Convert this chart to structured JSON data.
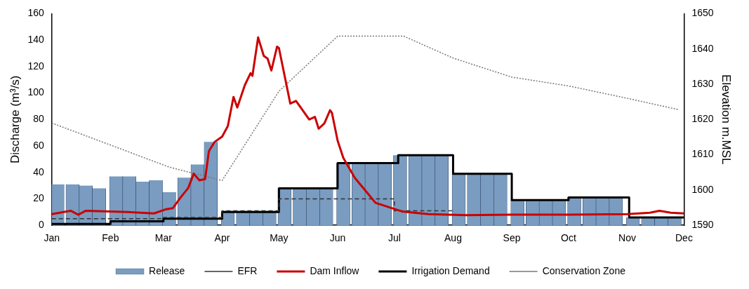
{
  "chart_data": {
    "type": "line",
    "ylabel": "Discharge (m³/s)",
    "y2label": "Elevation m.MSL",
    "xlim": [
      "--01-01",
      "--12-01"
    ],
    "xticks": [
      {
        "value": "--01-01",
        "label": "Jan"
      },
      {
        "value": "--02-01",
        "label": "Feb"
      },
      {
        "value": "--03-01",
        "label": "Mar"
      },
      {
        "value": "--04-01",
        "label": "Apr"
      },
      {
        "value": "--05-01",
        "label": "May"
      },
      {
        "value": "--06-01",
        "label": "Jun"
      },
      {
        "value": "--07-01",
        "label": "Jul"
      },
      {
        "value": "--08-01",
        "label": "Aug"
      },
      {
        "value": "--09-01",
        "label": "Sep"
      },
      {
        "value": "--10-01",
        "label": "Oct"
      },
      {
        "value": "--11-01",
        "label": "Nov"
      },
      {
        "value": "--12-01",
        "label": "Dec"
      }
    ],
    "ylim": [
      0,
      160
    ],
    "yticks": [
      0,
      20,
      40,
      60,
      80,
      100,
      120,
      140,
      160
    ],
    "y2lim": [
      1590,
      1650
    ],
    "y2ticks": [
      1590,
      1600,
      1610,
      1620,
      1630,
      1640,
      1650
    ],
    "legend": "bottom",
    "marker": "none",
    "series": [
      {
        "name": "Release",
        "type": "bar",
        "color": "#7a9cc0",
        "x": [
          "--01-04",
          "--01-12",
          "--01-19",
          "--01-26",
          "--02-04",
          "--02-11",
          "--02-18",
          "--02-25",
          "--03-04",
          "--03-12",
          "--03-19",
          "--03-26",
          "--04-04",
          "--04-12",
          "--04-19",
          "--04-26",
          "--05-04",
          "--05-12",
          "--05-19",
          "--05-26",
          "--06-04",
          "--06-12",
          "--06-19",
          "--06-26",
          "--07-04",
          "--07-12",
          "--07-19",
          "--07-26",
          "--08-04",
          "--08-12",
          "--08-19",
          "--08-26",
          "--09-04",
          "--09-12",
          "--09-19",
          "--09-26",
          "--10-04",
          "--10-12",
          "--10-19",
          "--10-26",
          "--11-04",
          "--11-12",
          "--11-19",
          "--11-26"
        ],
        "values": [
          31,
          31,
          30,
          28,
          37,
          37,
          33,
          34,
          25,
          36,
          46,
          63,
          11,
          11,
          11,
          11,
          28,
          28,
          28,
          28,
          47,
          47,
          47,
          47,
          53,
          53,
          53,
          53,
          39,
          39,
          39,
          39,
          19,
          19,
          19,
          19,
          21,
          21,
          21,
          21,
          6,
          6,
          6,
          6
        ]
      },
      {
        "name": "EFR",
        "type": "step",
        "color": "#333333",
        "line_style": "dashed",
        "x": [
          "--01-01",
          "--03-01",
          "--04-01",
          "--05-01",
          "--07-01",
          "--08-01"
        ],
        "values": [
          5,
          6,
          11,
          20,
          11,
          11
        ]
      },
      {
        "name": "Dam Inflow",
        "color": "#cc0000",
        "x": [
          "--01-01",
          "--01-11",
          "--01-15",
          "--01-19",
          "--02-10",
          "--02-24",
          "--03-02",
          "--03-06",
          "--03-10",
          "--03-14",
          "--03-17",
          "--03-20",
          "--03-23",
          "--03-25",
          "--03-28",
          "--04-01",
          "--04-04",
          "--04-07",
          "--04-09",
          "--04-13",
          "--04-16",
          "--04-17",
          "--04-20",
          "--04-23",
          "--04-25",
          "--04-27",
          "--04-30",
          "--05-01",
          "--05-07",
          "--05-10",
          "--05-13",
          "--05-17",
          "--05-20",
          "--05-22",
          "--05-25",
          "--05-28",
          "--05-29",
          "--06-01",
          "--06-04",
          "--06-10",
          "--06-17",
          "--06-21",
          "--07-05",
          "--07-19",
          "--08-08",
          "--09-01",
          "--10-01",
          "--11-01",
          "--11-13",
          "--11-18",
          "--11-24",
          "--12-01"
        ],
        "values": [
          8.5,
          11,
          8,
          11,
          10,
          9,
          12,
          13,
          21,
          28,
          39,
          34,
          35,
          56,
          63,
          67,
          75,
          97,
          89,
          106,
          115,
          113,
          142,
          128,
          126,
          117,
          135,
          134,
          92,
          94,
          88,
          80,
          82,
          73,
          77,
          87,
          85,
          64,
          51,
          36,
          24,
          17,
          10.5,
          8.5,
          7.6,
          8,
          8,
          8.5,
          9.5,
          11,
          9.5,
          9
        ]
      },
      {
        "name": "Irrigation Demand",
        "type": "step",
        "color": "#000000",
        "line_style": "solid",
        "x": [
          "--01-01",
          "--02-01",
          "--03-01",
          "--04-01",
          "--05-01",
          "--06-01",
          "--07-03",
          "--08-01",
          "--09-01",
          "--10-01",
          "--11-02",
          "--12-01"
        ],
        "values": [
          1,
          3,
          5,
          10,
          28,
          47,
          53,
          39,
          19,
          21,
          6,
          6
        ]
      },
      {
        "name": "Conservation Zone",
        "axis": "y2",
        "color": "#777777",
        "line_style": "dotted",
        "x": [
          "--01-01",
          "--03-04",
          "--04-01",
          "--05-01",
          "--06-01",
          "--07-06",
          "--08-01",
          "--09-01",
          "--10-01",
          "--11-01",
          "--11-28"
        ],
        "values": [
          1619,
          1606.5,
          1602.7,
          1628,
          1643.6,
          1643.6,
          1637.4,
          1632,
          1629.5,
          1626,
          1622.8
        ]
      }
    ]
  }
}
